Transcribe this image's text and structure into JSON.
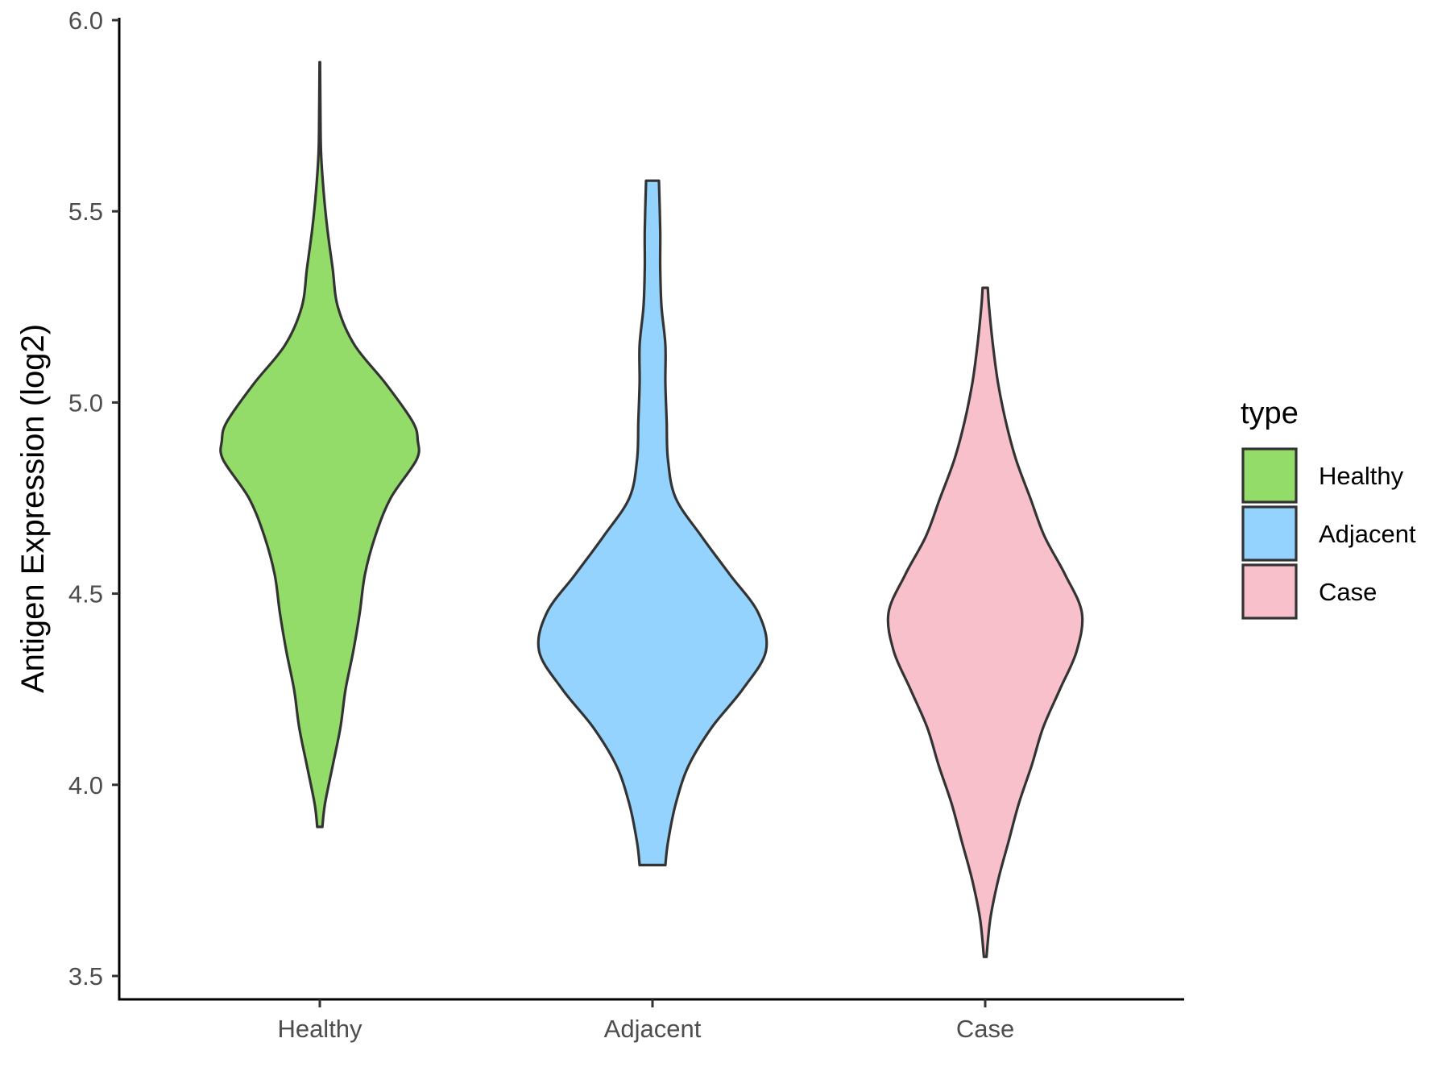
{
  "chart_data": {
    "type": "violin",
    "ylabel": "Antigen Expression (log2)",
    "xlabel": "",
    "ylim": [
      3.43,
      6.0
    ],
    "yticks": [
      "3.5",
      "4.0",
      "4.5",
      "5.0",
      "5.5",
      "6.0"
    ],
    "categories": [
      "Healthy",
      "Adjacent",
      "Case"
    ],
    "grid": false,
    "legend": {
      "title": "type",
      "position": "right",
      "entries": [
        "Healthy",
        "Adjacent",
        "Case"
      ]
    },
    "series": [
      {
        "name": "Healthy",
        "color": "#93dc69",
        "min": 3.89,
        "max": 5.89,
        "profile": [
          [
            3.89,
            0.02
          ],
          [
            3.95,
            0.04
          ],
          [
            4.05,
            0.1
          ],
          [
            4.15,
            0.16
          ],
          [
            4.25,
            0.2
          ],
          [
            4.35,
            0.26
          ],
          [
            4.45,
            0.31
          ],
          [
            4.55,
            0.35
          ],
          [
            4.65,
            0.43
          ],
          [
            4.75,
            0.55
          ],
          [
            4.85,
            0.75
          ],
          [
            4.9,
            0.76
          ],
          [
            4.95,
            0.72
          ],
          [
            5.05,
            0.51
          ],
          [
            5.15,
            0.27
          ],
          [
            5.25,
            0.14
          ],
          [
            5.35,
            0.1
          ],
          [
            5.45,
            0.06
          ],
          [
            5.55,
            0.03
          ],
          [
            5.65,
            0.01
          ],
          [
            5.75,
            0.005
          ],
          [
            5.89,
            0.002
          ]
        ]
      },
      {
        "name": "Adjacent",
        "color": "#93d3fd",
        "min": 3.79,
        "max": 5.58,
        "profile": [
          [
            3.79,
            0.1
          ],
          [
            3.85,
            0.12
          ],
          [
            3.95,
            0.18
          ],
          [
            4.05,
            0.28
          ],
          [
            4.15,
            0.46
          ],
          [
            4.25,
            0.7
          ],
          [
            4.35,
            0.88
          ],
          [
            4.45,
            0.82
          ],
          [
            4.55,
            0.6
          ],
          [
            4.65,
            0.38
          ],
          [
            4.75,
            0.18
          ],
          [
            4.85,
            0.12
          ],
          [
            4.95,
            0.11
          ],
          [
            5.05,
            0.1
          ],
          [
            5.15,
            0.1
          ],
          [
            5.25,
            0.07
          ],
          [
            5.35,
            0.06
          ],
          [
            5.45,
            0.06
          ],
          [
            5.58,
            0.05
          ]
        ]
      },
      {
        "name": "Case",
        "color": "#f7c0cb",
        "min": 3.55,
        "max": 5.3,
        "profile": [
          [
            3.55,
            0.01
          ],
          [
            3.65,
            0.04
          ],
          [
            3.75,
            0.1
          ],
          [
            3.85,
            0.18
          ],
          [
            3.95,
            0.26
          ],
          [
            4.05,
            0.36
          ],
          [
            4.15,
            0.45
          ],
          [
            4.25,
            0.58
          ],
          [
            4.35,
            0.71
          ],
          [
            4.45,
            0.75
          ],
          [
            4.55,
            0.62
          ],
          [
            4.65,
            0.46
          ],
          [
            4.75,
            0.35
          ],
          [
            4.85,
            0.24
          ],
          [
            4.95,
            0.16
          ],
          [
            5.05,
            0.1
          ],
          [
            5.15,
            0.06
          ],
          [
            5.25,
            0.03
          ],
          [
            5.3,
            0.02
          ]
        ]
      }
    ]
  }
}
